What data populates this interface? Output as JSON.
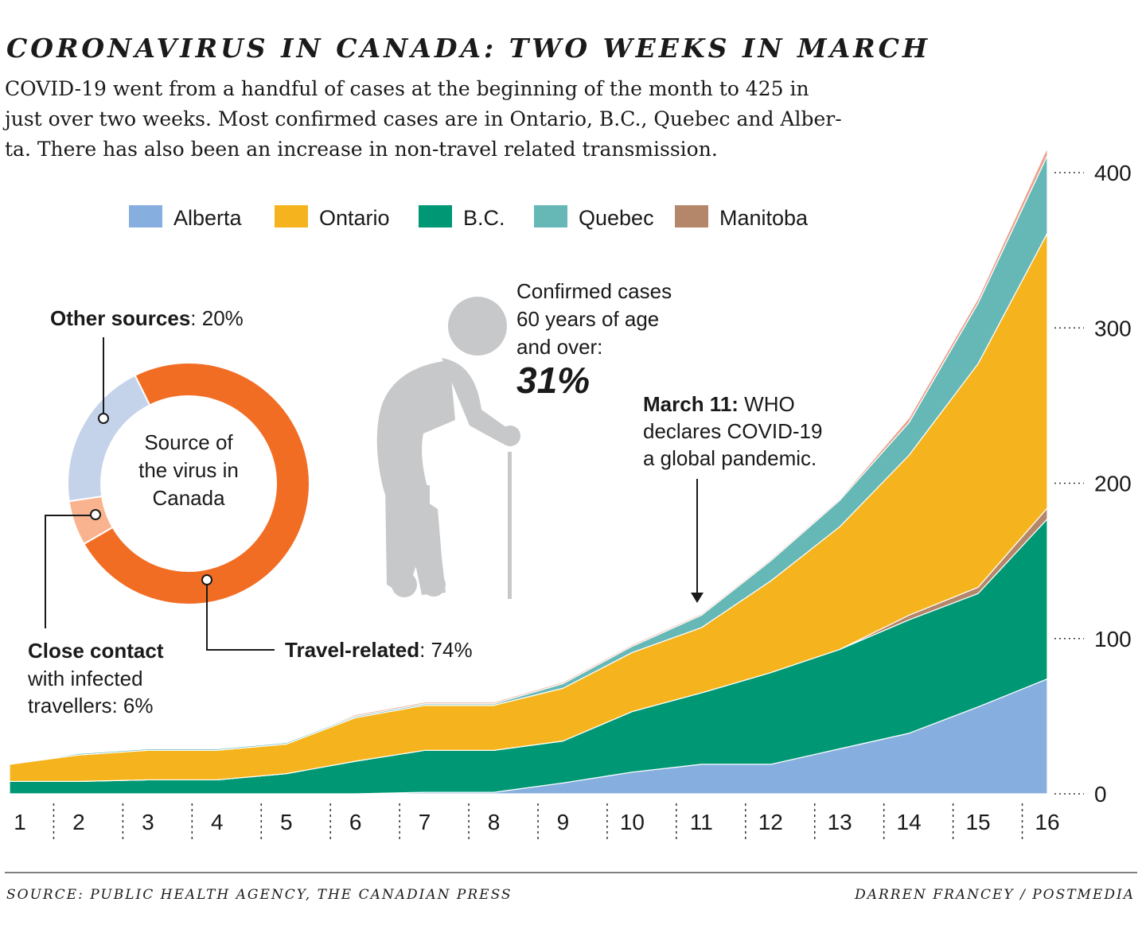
{
  "title": "CORONAVIRUS IN CANADA: TWO WEEKS IN MARCH",
  "subtitle_lines": [
    "COVID-19 went from a handful of cases at the beginning of the month to 425 in",
    "just over two weeks. Most confirmed cases are in Ontario, B.C., Quebec and Alber-",
    "ta. There has also been an increase in non-travel related transmission."
  ],
  "legend": [
    {
      "label": "Alberta",
      "color": "#86aedf"
    },
    {
      "label": "Ontario",
      "color": "#f5b41e"
    },
    {
      "label": "B.C.",
      "color": "#009874"
    },
    {
      "label": "Quebec",
      "color": "#66b8b7"
    },
    {
      "label": "Manitoba",
      "color": "#b5876a"
    }
  ],
  "chart_data": [
    {
      "type": "area",
      "stacked": true,
      "x": [
        1,
        2,
        3,
        4,
        5,
        6,
        7,
        8,
        9,
        10,
        11,
        12,
        13,
        14,
        15,
        16
      ],
      "ylim": [
        0,
        420
      ],
      "yticks": [
        0,
        100,
        200,
        300,
        400
      ],
      "series": [
        {
          "name": "Alberta",
          "color": "#86aedf",
          "values": [
            0,
            0,
            0,
            0,
            0,
            0,
            1,
            1,
            7,
            14,
            19,
            19,
            29,
            39,
            56,
            74
          ]
        },
        {
          "name": "B.C.",
          "color": "#009874",
          "values": [
            8,
            8,
            9,
            9,
            13,
            21,
            27,
            27,
            27,
            39,
            46,
            59,
            64,
            73,
            73,
            103
          ]
        },
        {
          "name": "Manitoba",
          "color": "#b5876a",
          "values": [
            0,
            0,
            0,
            0,
            0,
            0,
            0,
            0,
            0,
            0,
            0,
            0,
            0,
            3,
            4,
            7
          ]
        },
        {
          "name": "Ontario",
          "color": "#f5b41e",
          "values": [
            11,
            17,
            19,
            19,
            19,
            28,
            29,
            29,
            34,
            38,
            42,
            59,
            79,
            103,
            144,
            177
          ]
        },
        {
          "name": "Quebec",
          "color": "#66b8b7",
          "values": [
            0,
            1,
            1,
            1,
            1,
            1,
            1,
            1,
            3,
            4,
            8,
            13,
            17,
            21,
            39,
            50
          ]
        },
        {
          "name": "",
          "color": "#ec9f8a",
          "values": [
            0,
            0,
            0,
            0,
            0,
            1,
            1,
            1,
            1,
            1,
            1,
            1,
            1,
            3,
            3,
            5
          ]
        }
      ],
      "annotation": {
        "date": 11,
        "bold": "March 11:",
        "lines": [
          " WHO",
          "declares COVID-19",
          "a global pandemic."
        ]
      }
    },
    {
      "type": "pie",
      "center_label": [
        "Source of",
        "the virus in",
        "Canada"
      ],
      "slices": [
        {
          "name": "Travel-related",
          "value": 74,
          "color": "#f26d24",
          "label_bold": "Travel-related",
          "label_rest": ": 74%"
        },
        {
          "name": "Close contact with infected travellers",
          "value": 6,
          "color": "#f9b48f",
          "label_bold": "Close contact",
          "label_lines": [
            "with infected",
            "travellers: 6%"
          ]
        },
        {
          "name": "Other sources",
          "value": 20,
          "color": "#c4d2ea",
          "label_bold": "Other sources",
          "label_rest": ": 20%"
        }
      ]
    }
  ],
  "age_callout": {
    "lines": [
      "Confirmed cases",
      "60 years of age",
      "and over:"
    ],
    "value": "31%"
  },
  "footer": {
    "source": "SOURCE: PUBLIC HEALTH AGENCY, THE CANADIAN PRESS",
    "credit": "DARREN FRANCEY / POSTMEDIA"
  }
}
